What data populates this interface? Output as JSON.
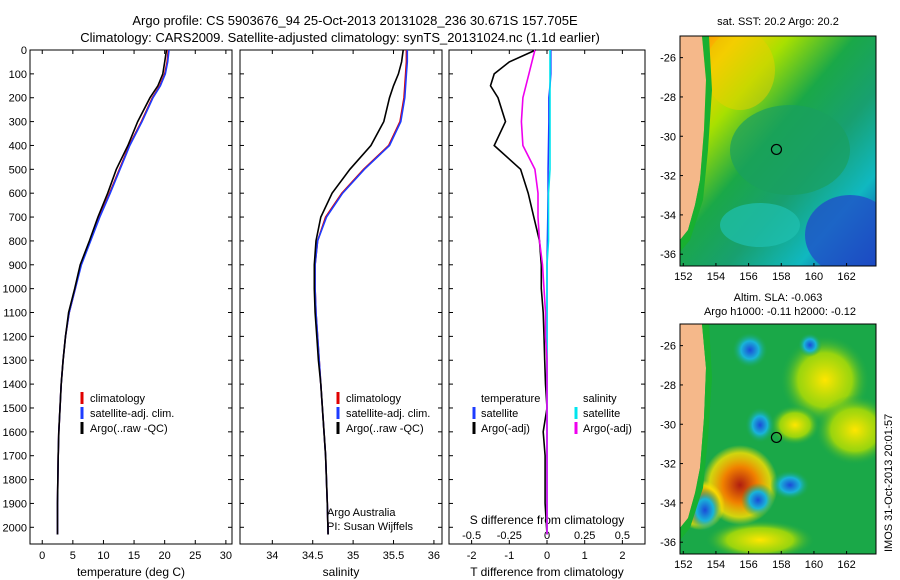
{
  "header": {
    "line1": "Argo profile: CS 5903676_94 25-Oct-2013 20131028_236 30.671S 157.705E",
    "line2": "Climatology: CARS2009. Satellite-adjusted climatology: synTS_20131024.nc (1.1d earlier)"
  },
  "colors": {
    "climatology": "#e00000",
    "satellite": "#1e3cff",
    "argo": "#000000",
    "sal_satellite": "#00e5ee",
    "sal_argo": "#ee00ee"
  },
  "chart_data": [
    {
      "type": "line",
      "id": "temperature",
      "xlabel": "temperature (deg C)",
      "xlim": [
        -2,
        31
      ],
      "xticks": [
        0,
        5,
        10,
        15,
        20,
        25,
        30
      ],
      "ylim": [
        2070,
        0
      ],
      "yticks": [
        0,
        100,
        200,
        300,
        400,
        500,
        600,
        700,
        800,
        900,
        1000,
        1100,
        1200,
        1300,
        1400,
        1500,
        1600,
        1700,
        1800,
        1900,
        2000
      ],
      "legend": [
        "climatology",
        "satellite-adj. clim.",
        "Argo(..raw -QC)"
      ],
      "series": [
        {
          "name": "climatology",
          "x": [
            20.6,
            20.4,
            20.0,
            19.2,
            18.0,
            16.2,
            14.2,
            12.6,
            11.0,
            9.3,
            7.8,
            6.3,
            5.4,
            4.4,
            3.8,
            3.4,
            3.1,
            2.9,
            2.7,
            2.6,
            2.5,
            2.5
          ],
          "y": [
            0,
            50,
            100,
            150,
            200,
            300,
            400,
            500,
            600,
            700,
            800,
            900,
            1000,
            1100,
            1200,
            1300,
            1400,
            1500,
            1600,
            1700,
            1900,
            2030
          ]
        },
        {
          "name": "satellite-adj. clim.",
          "x": [
            20.7,
            20.5,
            20.1,
            19.3,
            18.1,
            16.3,
            14.3,
            12.7,
            11.1,
            9.4,
            7.9,
            6.4,
            5.4,
            4.4,
            3.8,
            3.4,
            3.1,
            2.9,
            2.7,
            2.6,
            2.5,
            2.5
          ],
          "y": [
            0,
            50,
            100,
            150,
            200,
            300,
            400,
            500,
            600,
            700,
            800,
            900,
            1000,
            1100,
            1200,
            1300,
            1400,
            1500,
            1600,
            1700,
            1900,
            2030
          ]
        },
        {
          "name": "Argo(..raw -QC)",
          "x": [
            20.3,
            20.0,
            19.7,
            18.9,
            17.6,
            15.6,
            14.0,
            12.1,
            10.7,
            9.1,
            7.7,
            6.2,
            5.3,
            4.3,
            3.8,
            3.4,
            3.1,
            2.9,
            2.7,
            2.6,
            2.5,
            2.5
          ],
          "y": [
            0,
            50,
            100,
            150,
            200,
            300,
            400,
            500,
            600,
            700,
            800,
            900,
            1000,
            1100,
            1200,
            1300,
            1400,
            1500,
            1600,
            1700,
            1900,
            2030
          ]
        }
      ]
    },
    {
      "type": "line",
      "id": "salinity",
      "xlabel": "salinity",
      "xlim": [
        33.6,
        36.1
      ],
      "xticks": [
        34,
        34.5,
        35,
        35.5,
        36
      ],
      "ylim": [
        2070,
        0
      ],
      "legend": [
        "climatology",
        "satellite-adj. clim.",
        "Argo(..raw -QC)"
      ],
      "annotation": [
        "Argo Australia",
        "PI: Susan Wijffels"
      ],
      "series": [
        {
          "name": "climatology",
          "x": [
            35.66,
            35.66,
            35.65,
            35.64,
            35.63,
            35.58,
            35.44,
            35.13,
            34.86,
            34.66,
            34.56,
            34.53,
            34.53,
            34.54,
            34.56,
            34.58,
            34.6,
            34.62,
            34.64,
            34.66,
            34.68,
            34.69
          ],
          "y": [
            0,
            50,
            100,
            150,
            200,
            300,
            400,
            500,
            600,
            700,
            800,
            900,
            1000,
            1100,
            1200,
            1300,
            1400,
            1500,
            1600,
            1700,
            1900,
            2030
          ]
        },
        {
          "name": "satellite-adj. clim.",
          "x": [
            35.67,
            35.67,
            35.66,
            35.65,
            35.64,
            35.59,
            35.45,
            35.14,
            34.87,
            34.67,
            34.56,
            34.53,
            34.53,
            34.54,
            34.56,
            34.58,
            34.6,
            34.62,
            34.64,
            34.66,
            34.68,
            34.69
          ],
          "y": [
            0,
            50,
            100,
            150,
            200,
            300,
            400,
            500,
            600,
            700,
            800,
            900,
            1000,
            1100,
            1200,
            1300,
            1400,
            1500,
            1600,
            1700,
            1900,
            2030
          ]
        },
        {
          "name": "Argo(..raw -QC)",
          "x": [
            35.62,
            35.6,
            35.56,
            35.5,
            35.45,
            35.38,
            35.22,
            34.96,
            34.74,
            34.6,
            34.54,
            34.52,
            34.52,
            34.53,
            34.55,
            34.57,
            34.6,
            34.62,
            34.64,
            34.66,
            34.68,
            34.69
          ],
          "y": [
            0,
            50,
            100,
            150,
            200,
            300,
            400,
            500,
            600,
            700,
            800,
            900,
            1000,
            1100,
            1200,
            1300,
            1400,
            1500,
            1600,
            1700,
            1900,
            2030
          ]
        }
      ]
    },
    {
      "type": "line",
      "id": "difference",
      "xlabel": "T difference from climatology",
      "xlabel_top": "S difference from climatology",
      "xlim": [
        -2.6,
        2.6
      ],
      "xticks": [
        -2,
        -1,
        0,
        1,
        2
      ],
      "top_ticks": [
        "-0.5",
        "-0.25",
        "0",
        "0.25",
        "0.5"
      ],
      "top_tick_values": [
        -0.5,
        -0.25,
        0,
        0.25,
        0.5
      ],
      "ylim": [
        2070,
        0
      ],
      "legend": {
        "temperature": "temperature",
        "salinity": "salinity",
        "satellite": "satellite",
        "argo": "Argo(-adj)"
      },
      "series": [
        {
          "name": "temperature satellite",
          "x": [
            0.1,
            0.1,
            0.1,
            0.08,
            0.05,
            0.05,
            0.04,
            0.03,
            0.03,
            0.02,
            0.01,
            0,
            0,
            0,
            0,
            0,
            0,
            0,
            0,
            0,
            0,
            0
          ],
          "y": [
            0,
            50,
            100,
            150,
            200,
            300,
            400,
            500,
            600,
            700,
            800,
            900,
            1000,
            1100,
            1200,
            1300,
            1400,
            1500,
            1600,
            1700,
            1900,
            2030
          ]
        },
        {
          "name": "temperature Argo(-adj)",
          "x": [
            -0.3,
            -1.0,
            -1.4,
            -1.5,
            -1.3,
            -1.1,
            -1.4,
            -0.7,
            -0.5,
            -0.35,
            -0.2,
            -0.15,
            -0.15,
            -0.1,
            -0.08,
            -0.06,
            -0.04,
            0,
            -0.1,
            -0.05,
            -0.05,
            0
          ],
          "y": [
            0,
            50,
            100,
            150,
            200,
            300,
            400,
            500,
            600,
            700,
            800,
            900,
            1000,
            1100,
            1200,
            1300,
            1400,
            1500,
            1600,
            1700,
            1900,
            2030
          ]
        },
        {
          "name": "salinity satellite",
          "x": [
            0.02,
            0.02,
            0.02,
            0.02,
            0.02,
            0.02,
            0.02,
            0.02,
            0.01,
            0.01,
            0.01,
            0,
            0,
            0,
            0,
            0,
            0,
            0,
            0,
            0,
            0,
            0
          ],
          "y": [
            0,
            50,
            100,
            150,
            200,
            300,
            400,
            500,
            600,
            700,
            800,
            900,
            1000,
            1100,
            1200,
            1300,
            1400,
            1500,
            1600,
            1700,
            1900,
            2030
          ]
        },
        {
          "name": "salinity Argo(-adj)",
          "x": [
            -0.08,
            -0.1,
            -0.12,
            -0.14,
            -0.16,
            -0.17,
            -0.16,
            -0.08,
            -0.06,
            -0.06,
            -0.05,
            -0.03,
            -0.02,
            -0.01,
            -0.01,
            0,
            0,
            0,
            0,
            0,
            0,
            0
          ],
          "y": [
            0,
            50,
            100,
            150,
            200,
            300,
            400,
            500,
            600,
            700,
            800,
            900,
            1000,
            1100,
            1200,
            1300,
            1400,
            1500,
            1600,
            1700,
            1900,
            2030
          ]
        }
      ]
    },
    {
      "type": "heatmap",
      "id": "sst_map",
      "title": "sat. SST: 20.2  Argo: 20.2",
      "xlim": [
        151.8,
        163.8
      ],
      "ylim": [
        -36.6,
        -24.9
      ],
      "xticks": [
        152,
        154,
        156,
        158,
        160,
        162
      ],
      "yticks": [
        -26,
        -28,
        -30,
        -32,
        -34,
        -36
      ],
      "argo_position": [
        157.705,
        -30.671
      ]
    },
    {
      "type": "heatmap",
      "id": "sla_map",
      "title_line1": "Altim. SLA: -0.063",
      "title_line2": "Argo h1000: -0.11  h2000: -0.12",
      "xlim": [
        151.8,
        163.8
      ],
      "ylim": [
        -36.6,
        -24.9
      ],
      "xticks": [
        152,
        154,
        156,
        158,
        160,
        162
      ],
      "yticks": [
        -26,
        -28,
        -30,
        -32,
        -34,
        -36
      ],
      "argo_position": [
        157.705,
        -30.671
      ]
    }
  ],
  "side_stamp": "IMOS 31-Oct-2013 20:01:57"
}
